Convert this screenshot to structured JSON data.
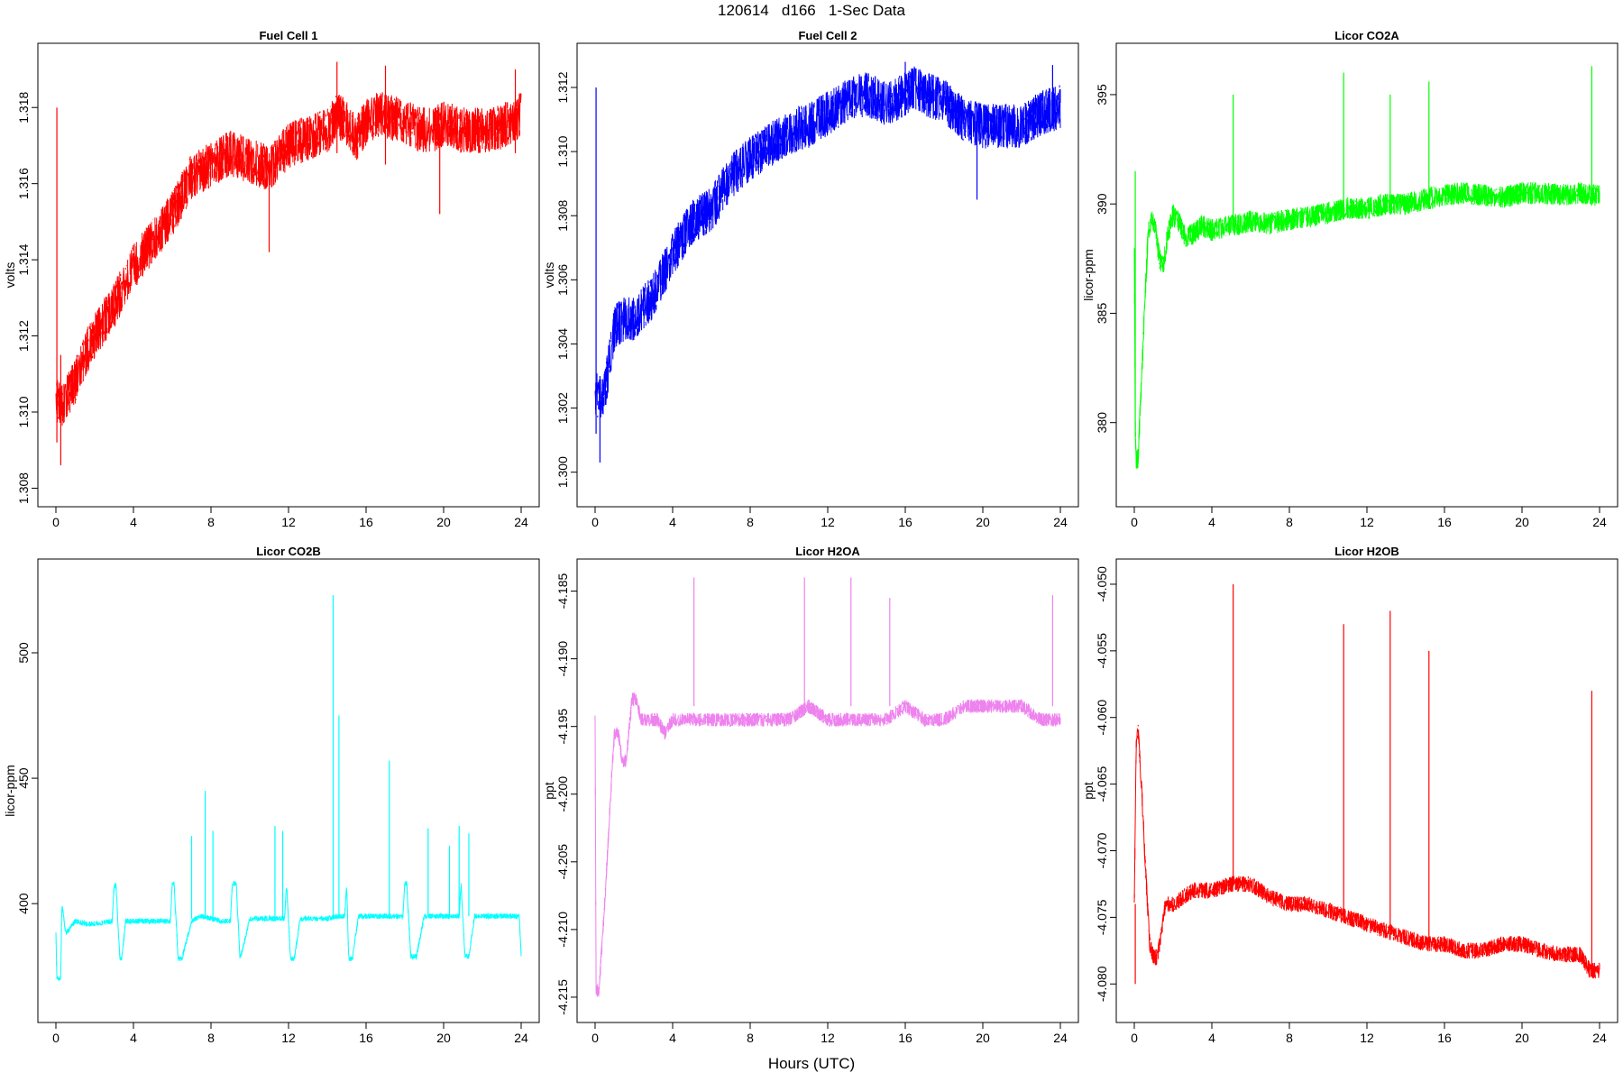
{
  "figure": {
    "title": "120614   d166   1-Sec Data",
    "xlabel": "Hours (UTC)"
  },
  "chart_data": [
    {
      "type": "line",
      "title": "Fuel Cell 1",
      "xlabel": "",
      "ylabel": "volts",
      "color": "#ff0000",
      "xlim": [
        0,
        24
      ],
      "ylim": [
        1.308,
        1.3192
      ],
      "xticks": [
        0,
        4,
        8,
        12,
        16,
        20,
        24
      ],
      "yticks": [
        1.308,
        1.31,
        1.312,
        1.314,
        1.316,
        1.318
      ],
      "ytick_labels": [
        "1.308",
        "1.310",
        "1.312",
        "1.314",
        "1.316",
        "1.318"
      ],
      "series": [
        {
          "x": [
            0,
            0.3,
            0.5,
            1,
            1.5,
            2,
            3,
            4,
            5,
            6,
            7,
            8,
            9,
            10,
            11,
            12,
            13,
            14,
            14.5,
            15,
            15.5,
            16,
            16.5,
            17,
            18,
            19,
            19.5,
            20,
            21,
            22,
            23,
            24
          ],
          "y": [
            1.3103,
            1.3101,
            1.3103,
            1.3108,
            1.3115,
            1.312,
            1.3128,
            1.3138,
            1.3145,
            1.3152,
            1.3162,
            1.3165,
            1.3168,
            1.3166,
            1.3164,
            1.317,
            1.3172,
            1.3174,
            1.3178,
            1.3176,
            1.3172,
            1.3176,
            1.3178,
            1.3178,
            1.3176,
            1.3174,
            1.3174,
            1.3176,
            1.3174,
            1.3174,
            1.3175,
            1.3178
          ],
          "band": 0.0012
        }
      ],
      "spikes": [
        {
          "x": 0.05,
          "y0": 1.3092,
          "y1": 1.318
        },
        {
          "x": 0.25,
          "y0": 1.3086,
          "y1": 1.3115
        },
        {
          "x": 14.5,
          "y0": 1.3168,
          "y1": 1.3192
        },
        {
          "x": 17.0,
          "y0": 1.3165,
          "y1": 1.3191
        },
        {
          "x": 19.8,
          "y0": 1.3152,
          "y1": 1.3175
        },
        {
          "x": 11.0,
          "y0": 1.3142,
          "y1": 1.3168
        },
        {
          "x": 23.7,
          "y0": 1.3168,
          "y1": 1.319
        }
      ]
    },
    {
      "type": "line",
      "title": "Fuel Cell 2",
      "xlabel": "",
      "ylabel": "volts",
      "color": "#0000ff",
      "xlim": [
        0,
        24
      ],
      "ylim": [
        1.2995,
        1.3128
      ],
      "xticks": [
        0,
        4,
        8,
        12,
        16,
        20,
        24
      ],
      "yticks": [
        1.3,
        1.302,
        1.304,
        1.306,
        1.308,
        1.31,
        1.312
      ],
      "ytick_labels": [
        "1.300",
        "1.302",
        "1.304",
        "1.306",
        "1.308",
        "1.310",
        "1.312"
      ],
      "series": [
        {
          "x": [
            0,
            0.3,
            0.5,
            1,
            1.5,
            2,
            3,
            4,
            5,
            6,
            7,
            8,
            9,
            10,
            11,
            12,
            13,
            14,
            15,
            16,
            16.5,
            17,
            18,
            19,
            20,
            21,
            22,
            23,
            24
          ],
          "y": [
            1.3025,
            1.3022,
            1.3025,
            1.3045,
            1.3048,
            1.3048,
            1.3055,
            1.3068,
            1.3078,
            1.3082,
            1.3092,
            1.3098,
            1.3102,
            1.3106,
            1.3108,
            1.3112,
            1.3116,
            1.3118,
            1.3115,
            1.3118,
            1.312,
            1.3118,
            1.3116,
            1.311,
            1.3108,
            1.3108,
            1.3108,
            1.3112,
            1.3114
          ],
          "band": 0.0014
        }
      ],
      "spikes": [
        {
          "x": 0.05,
          "y0": 1.3012,
          "y1": 1.312
        },
        {
          "x": 0.25,
          "y0": 1.3003,
          "y1": 1.303
        },
        {
          "x": 16.0,
          "y0": 1.3112,
          "y1": 1.3128
        },
        {
          "x": 19.7,
          "y0": 1.3085,
          "y1": 1.311
        },
        {
          "x": 23.6,
          "y0": 1.3108,
          "y1": 1.3127
        }
      ]
    },
    {
      "type": "line",
      "title": "Licor CO2A",
      "xlabel": "",
      "ylabel": "licor-ppm",
      "color": "#00ff00",
      "xlim": [
        0,
        24
      ],
      "ylim": [
        377,
        396.5
      ],
      "xticks": [
        0,
        4,
        8,
        12,
        16,
        20,
        24
      ],
      "yticks": [
        380,
        385,
        390,
        395
      ],
      "ytick_labels": [
        "380",
        "385",
        "390",
        "395"
      ],
      "series": [
        {
          "x": [
            0,
            0.05,
            0.1,
            0.2,
            0.3,
            0.5,
            0.7,
            0.9,
            1.1,
            1.3,
            1.5,
            1.7,
            2.0,
            2.3,
            2.6,
            3.0,
            3.5,
            4,
            5,
            6,
            7,
            8,
            9,
            10,
            11,
            12,
            13,
            14,
            15,
            16,
            17,
            18,
            19,
            20,
            21,
            22,
            23,
            23.8
          ],
          "y": [
            388,
            380,
            378.2,
            378.4,
            380.5,
            384.5,
            388.5,
            389.5,
            388.8,
            387.5,
            387.2,
            388.5,
            389.5,
            389.2,
            388.5,
            388.6,
            389.0,
            388.8,
            389.0,
            389.2,
            389.1,
            389.3,
            389.4,
            389.6,
            389.8,
            389.8,
            390.0,
            390.0,
            390.2,
            390.4,
            390.5,
            390.4,
            390.3,
            390.5,
            390.5,
            390.4,
            390.5,
            390.4
          ],
          "band": 1.0
        }
      ],
      "spikes": [
        {
          "x": 0.05,
          "y0": 380,
          "y1": 391.5
        },
        {
          "x": 5.1,
          "y0": 389,
          "y1": 395.0
        },
        {
          "x": 10.8,
          "y0": 389.5,
          "y1": 396.0
        },
        {
          "x": 13.2,
          "y0": 389.5,
          "y1": 395.0
        },
        {
          "x": 15.2,
          "y0": 390,
          "y1": 395.6
        },
        {
          "x": 23.6,
          "y0": 390,
          "y1": 396.3
        }
      ]
    },
    {
      "type": "line",
      "title": "Licor CO2B",
      "xlabel": "",
      "ylabel": "licor-ppm",
      "color": "#00ffff",
      "xlim": [
        0,
        24
      ],
      "ylim": [
        360,
        530
      ],
      "xticks": [
        0,
        4,
        8,
        12,
        16,
        20,
        24
      ],
      "yticks": [
        400,
        450,
        500
      ],
      "ytick_labels": [
        "400",
        "450",
        "500"
      ],
      "series": [
        {
          "x": [
            0,
            0.05,
            0.1,
            0.25,
            0.3,
            0.35,
            0.5,
            1,
            1.5,
            2,
            2.9,
            3.0,
            3.1,
            3.3,
            3.4,
            3.6,
            4,
            5,
            5.9,
            6.0,
            6.1,
            6.3,
            6.5,
            7,
            7.5,
            8,
            8.5,
            9.0,
            9.1,
            9.3,
            9.5,
            10,
            11,
            11.8,
            11.9,
            12.1,
            12.3,
            12.6,
            13,
            14,
            14.5,
            14.9,
            15.0,
            15.1,
            15.3,
            15.6,
            16,
            17,
            17.9,
            18.0,
            18.1,
            18.3,
            18.6,
            19,
            20,
            20.8,
            20.9,
            21.1,
            21.3,
            21.6,
            22,
            23,
            23.9,
            24
          ],
          "y": [
            388,
            370,
            370,
            370,
            398,
            398,
            388,
            393,
            392,
            392,
            393,
            407,
            407,
            378,
            378,
            393,
            393,
            393,
            393,
            408,
            408,
            378,
            378,
            393,
            395,
            394,
            393,
            393,
            408,
            408,
            378,
            394,
            394,
            394,
            408,
            378,
            378,
            394,
            394,
            394,
            395,
            395,
            408,
            378,
            378,
            395,
            395,
            395,
            395,
            408,
            408,
            379,
            379,
            395,
            395,
            395,
            408,
            379,
            379,
            395,
            395,
            395,
            395,
            380
          ],
          "band": 2.0
        }
      ],
      "spikes": [
        {
          "x": 7.0,
          "y0": 394,
          "y1": 427
        },
        {
          "x": 7.7,
          "y0": 394,
          "y1": 445
        },
        {
          "x": 8.1,
          "y0": 394,
          "y1": 429
        },
        {
          "x": 11.3,
          "y0": 394,
          "y1": 431
        },
        {
          "x": 11.7,
          "y0": 394,
          "y1": 429
        },
        {
          "x": 14.3,
          "y0": 395,
          "y1": 523
        },
        {
          "x": 14.6,
          "y0": 395,
          "y1": 475
        },
        {
          "x": 17.2,
          "y0": 395,
          "y1": 457
        },
        {
          "x": 19.2,
          "y0": 395,
          "y1": 430
        },
        {
          "x": 20.3,
          "y0": 395,
          "y1": 423
        },
        {
          "x": 20.8,
          "y0": 395,
          "y1": 431
        },
        {
          "x": 21.3,
          "y0": 395,
          "y1": 428
        }
      ]
    },
    {
      "type": "line",
      "title": "Licor H2OA",
      "xlabel": "",
      "ylabel": "ppt",
      "color": "#ee82ee",
      "xlim": [
        0,
        24
      ],
      "ylim": [
        -4.2155,
        -4.184
      ],
      "xticks": [
        0,
        4,
        8,
        12,
        16,
        20,
        24
      ],
      "yticks": [
        -4.215,
        -4.21,
        -4.205,
        -4.2,
        -4.195,
        -4.19,
        -4.185
      ],
      "ytick_labels": [
        "-4.215",
        "-4.210",
        "-4.205",
        "-4.200",
        "-4.195",
        "-4.190",
        "-4.185"
      ],
      "series": [
        {
          "x": [
            0,
            0.05,
            0.2,
            0.5,
            0.8,
            1.0,
            1.2,
            1.4,
            1.6,
            1.9,
            2.1,
            2.4,
            2.8,
            3.2,
            3.6,
            4,
            5,
            6,
            7,
            8,
            9,
            10,
            11,
            12,
            13,
            14,
            15,
            16,
            17,
            18,
            19,
            20,
            21,
            22,
            23,
            24
          ],
          "y": [
            -4.194,
            -4.2145,
            -4.2145,
            -4.208,
            -4.2,
            -4.1955,
            -4.1955,
            -4.1975,
            -4.1975,
            -4.193,
            -4.193,
            -4.1945,
            -4.1945,
            -4.1945,
            -4.1955,
            -4.1945,
            -4.1945,
            -4.1945,
            -4.1945,
            -4.1945,
            -4.1945,
            -4.1945,
            -4.1935,
            -4.1945,
            -4.1945,
            -4.1945,
            -4.1945,
            -4.1935,
            -4.1945,
            -4.1945,
            -4.1935,
            -4.1935,
            -4.1935,
            -4.1935,
            -4.1945,
            -4.1945
          ],
          "band": 0.001
        }
      ],
      "spikes": [
        {
          "x": 5.1,
          "y0": -4.1935,
          "y1": -4.184
        },
        {
          "x": 10.8,
          "y0": -4.1935,
          "y1": -4.184
        },
        {
          "x": 13.2,
          "y0": -4.1935,
          "y1": -4.184
        },
        {
          "x": 15.2,
          "y0": -4.1935,
          "y1": -4.1855
        },
        {
          "x": 23.6,
          "y0": -4.1935,
          "y1": -4.1853
        }
      ]
    },
    {
      "type": "line",
      "title": "Licor H2OB",
      "xlabel": "",
      "ylabel": "ppt",
      "color": "#ff0000",
      "xlim": [
        0,
        24
      ],
      "ylim": [
        -4.0815,
        -4.0495
      ],
      "xticks": [
        0,
        4,
        8,
        12,
        16,
        20,
        24
      ],
      "yticks": [
        -4.08,
        -4.075,
        -4.07,
        -4.065,
        -4.06,
        -4.055,
        -4.05
      ],
      "ytick_labels": [
        "-4.080",
        "-4.075",
        "-4.070",
        "-4.065",
        "-4.060",
        "-4.055",
        "-4.050"
      ],
      "series": [
        {
          "x": [
            0,
            0.1,
            0.2,
            0.4,
            0.6,
            0.8,
            1.0,
            1.2,
            1.4,
            1.6,
            2.0,
            3,
            4,
            5,
            6,
            7,
            8,
            9,
            10,
            11,
            12,
            13,
            14,
            15,
            16,
            17,
            18,
            19,
            20,
            21,
            22,
            23,
            23.5,
            24
          ],
          "y": [
            -4.074,
            -4.062,
            -4.061,
            -4.066,
            -4.072,
            -4.077,
            -4.078,
            -4.078,
            -4.076,
            -4.074,
            -4.074,
            -4.073,
            -4.073,
            -4.0725,
            -4.0725,
            -4.0735,
            -4.074,
            -4.074,
            -4.0745,
            -4.075,
            -4.0755,
            -4.076,
            -4.0765,
            -4.077,
            -4.077,
            -4.0775,
            -4.0775,
            -4.077,
            -4.077,
            -4.0775,
            -4.0778,
            -4.0778,
            -4.079,
            -4.079
          ],
          "band": 0.0012
        }
      ],
      "spikes": [
        {
          "x": 5.1,
          "y0": -4.0725,
          "y1": -4.05
        },
        {
          "x": 10.8,
          "y0": -4.075,
          "y1": -4.053
        },
        {
          "x": 13.2,
          "y0": -4.076,
          "y1": -4.052
        },
        {
          "x": 15.2,
          "y0": -4.077,
          "y1": -4.055
        },
        {
          "x": 23.6,
          "y0": -4.079,
          "y1": -4.058
        },
        {
          "x": 0.05,
          "y0": -4.08,
          "y1": -4.074
        }
      ]
    }
  ]
}
